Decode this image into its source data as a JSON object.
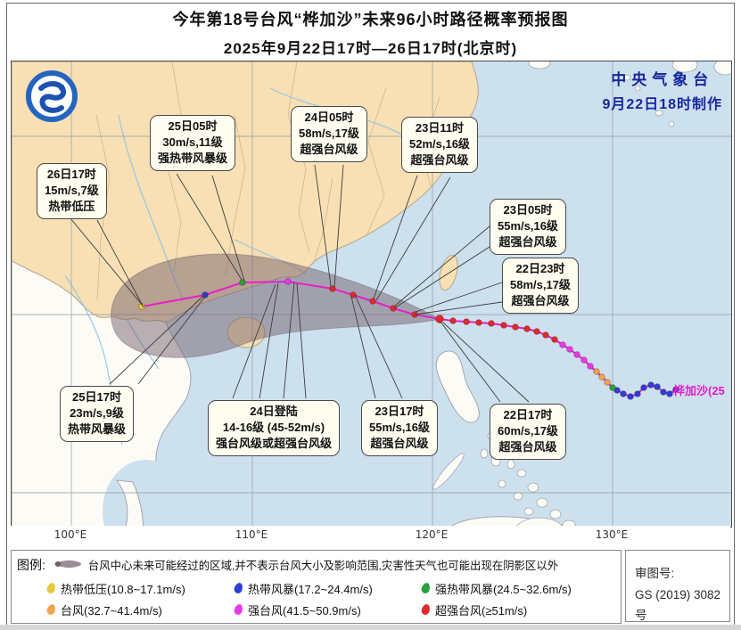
{
  "title": {
    "line1": "今年第18号台风“桦加沙”未来96小时路径概率预报图",
    "line2": "2025年9月22日17时—26日17时(北京时)"
  },
  "watermark": {
    "line1": "中央气象台",
    "line2": "9月22日18时制作"
  },
  "storm_label": "桦加沙(25",
  "axis": {
    "lon_labels": [
      "100°E",
      "110°E",
      "120°E",
      "130°E"
    ]
  },
  "callouts": [
    {
      "id": "26d17",
      "line1": "26日17时",
      "line2": "15m/s,7级",
      "line3": "热带低压"
    },
    {
      "id": "25d05",
      "line1": "25日05时",
      "line2": "30m/s,11级",
      "line3": "强热带风暴级"
    },
    {
      "id": "24d05",
      "line1": "24日05时",
      "line2": "58m/s,17级",
      "line3": "超强台风级"
    },
    {
      "id": "23d11",
      "line1": "23日11时",
      "line2": "52m/s,16级",
      "line3": "超强台风级"
    },
    {
      "id": "23d05",
      "line1": "23日05时",
      "line2": "55m/s,16级",
      "line3": "超强台风级"
    },
    {
      "id": "22d23",
      "line1": "22日23时",
      "line2": "58m/s,17级",
      "line3": "超强台风级"
    },
    {
      "id": "25d17",
      "line1": "25日17时",
      "line2": "23m/s,9级",
      "line3": "热带风暴级"
    },
    {
      "id": "24dld",
      "line1": "24日登陆",
      "line2": "14-16级 (45-52m/s)",
      "line3": "强台风级或超强台风级"
    },
    {
      "id": "23d17",
      "line1": "23日17时",
      "line2": "55m/s,16级",
      "line3": "超强台风级"
    },
    {
      "id": "22d17",
      "line1": "22日17时",
      "line2": "60m/s,17级",
      "line3": "超强台风级"
    }
  ],
  "legend": {
    "label": "图例:",
    "cone_note": "台风中心未来可能经过的区域,并不表示台风大小及影响范围,灾害性天气也可能出现在阴影区以外",
    "items": [
      {
        "name": "热带低压(10.8~17.1m/s)",
        "color": "#e8c93e",
        "key": "td"
      },
      {
        "name": "热带风暴(17.2~24.4m/s)",
        "color": "#2e3fd4",
        "key": "ts"
      },
      {
        "name": "强热带风暴(24.5~32.6m/s)",
        "color": "#27a23b",
        "key": "sts"
      },
      {
        "name": "台风(32.7~41.4m/s)",
        "color": "#f2a44c",
        "key": "ty"
      },
      {
        "name": "强台风(41.5~50.9m/s)",
        "color": "#e93ae9",
        "key": "sty"
      },
      {
        "name": "超强台风(≥51m/s)",
        "color": "#dd2b2b",
        "key": "superty"
      }
    ]
  },
  "review": {
    "line1": "审图号:",
    "line2": "GS (2019) 3082号"
  },
  "colors": {
    "ocean": "#cde0ee",
    "china_land": "#f8e0b4",
    "other_land": "#fcfbf6",
    "cone": "rgba(118,98,110,0.5)",
    "track_line": "#e620c8",
    "watermark_text": "#16279f",
    "storm_label_text": "#e01ec9"
  },
  "track": {
    "line_color": "#e620c8",
    "colors": {
      "td": "#e8c93e",
      "ts": "#2e3fd4",
      "sts": "#27a23b",
      "ty": "#f2a44c",
      "sty": "#e93ae9",
      "superty": "#dd2b2b"
    },
    "history": [
      [
        745,
        368,
        "ts"
      ],
      [
        738,
        373,
        "ts"
      ],
      [
        731,
        371,
        "ts"
      ],
      [
        724,
        365,
        "ts"
      ],
      [
        717,
        363,
        "ts"
      ],
      [
        709,
        366,
        "ts"
      ],
      [
        702,
        373,
        "ts"
      ],
      [
        694,
        376,
        "ts"
      ],
      [
        686,
        373,
        "ts"
      ],
      [
        679,
        369,
        "ts"
      ],
      [
        674,
        366,
        "sts"
      ],
      [
        668,
        360,
        "ty"
      ],
      [
        662,
        354,
        "ty"
      ],
      [
        656,
        348,
        "ty"
      ],
      [
        649,
        342,
        "sty"
      ],
      [
        642,
        335,
        "sty"
      ],
      [
        634,
        329,
        "sty"
      ],
      [
        626,
        323,
        "sty"
      ],
      [
        618,
        318,
        "sty"
      ],
      [
        609,
        312,
        "superty"
      ],
      [
        599,
        307,
        "superty"
      ],
      [
        589,
        303,
        "superty"
      ],
      [
        578,
        300,
        "superty"
      ],
      [
        565,
        298,
        "superty"
      ],
      [
        552,
        296,
        "superty"
      ],
      [
        538,
        294,
        "superty"
      ],
      [
        524,
        293,
        "superty"
      ],
      [
        510,
        292,
        "superty"
      ],
      [
        495,
        291,
        "superty"
      ],
      [
        480,
        289,
        "cur"
      ]
    ],
    "forecast": [
      [
        452,
        284,
        "superty"
      ],
      [
        428,
        277,
        "superty"
      ],
      [
        405,
        269,
        "superty"
      ],
      [
        383,
        262,
        "superty"
      ],
      [
        360,
        255,
        "superty"
      ],
      [
        310,
        247,
        "sty"
      ],
      [
        259,
        248,
        "sts"
      ],
      [
        217,
        262,
        "ts"
      ],
      [
        146,
        275,
        "td"
      ]
    ]
  }
}
